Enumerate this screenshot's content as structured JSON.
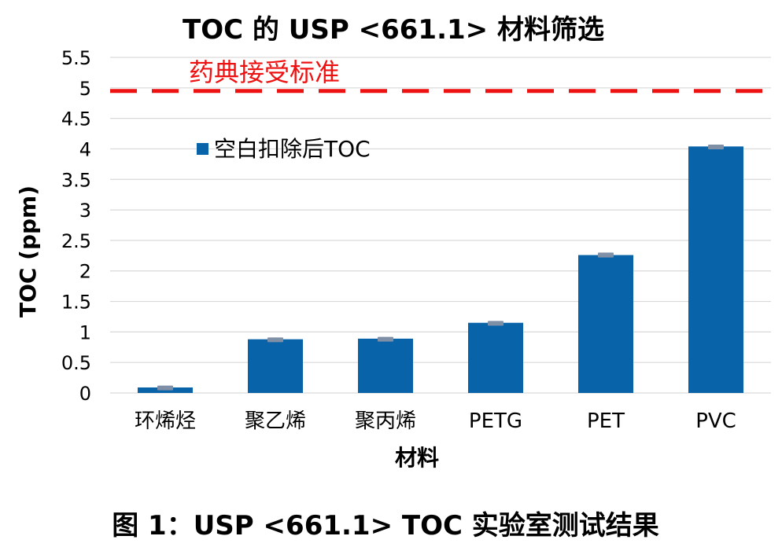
{
  "chart_data": {
    "type": "bar",
    "title": "TOC 的 USP <661.1> 材料筛选",
    "xlabel": "材料",
    "ylabel": "TOC (ppm)",
    "ylim": [
      0,
      5.5
    ],
    "yticks": [
      "0",
      "0.5",
      "1",
      "1.5",
      "2",
      "2.5",
      "3",
      "3.5",
      "4",
      "4.5",
      "5",
      "5.5"
    ],
    "categories": [
      "环烯烃",
      "聚乙烯",
      "聚丙烯",
      "PETG",
      "PET",
      "PVC"
    ],
    "series": [
      {
        "name": "空白扣除后TOC",
        "values": [
          0.09,
          0.88,
          0.89,
          1.15,
          2.26,
          4.04
        ],
        "errors": [
          0.03,
          0.03,
          0.03,
          0.03,
          0.04,
          0.03
        ]
      }
    ],
    "reference_line": {
      "value": 4.95,
      "label": "药典接受标准",
      "style": "dashed"
    },
    "grid": true,
    "legend_position": "upper-left inside plot",
    "colors": {
      "bar": "#0863A9",
      "error_cap": "#7F8FA6",
      "reference": "#EE1111",
      "grid": "#D9D9D9"
    }
  },
  "caption": "图 1：USP <661.1> TOC 实验室测试结果"
}
